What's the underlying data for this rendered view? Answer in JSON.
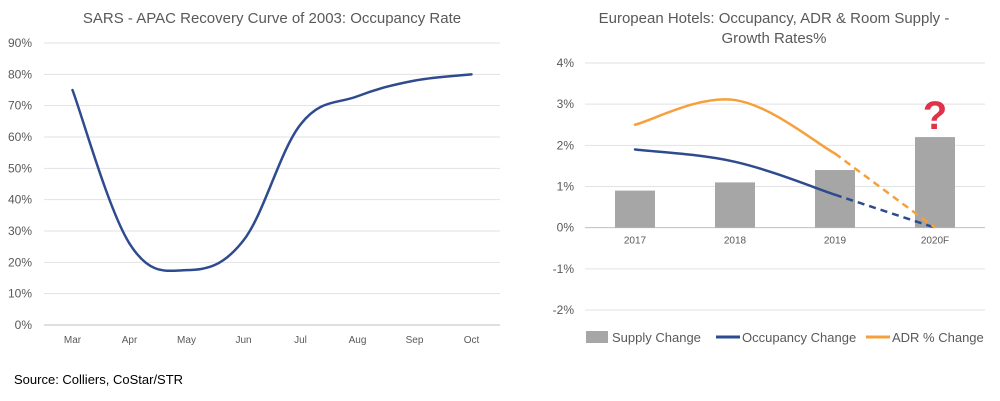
{
  "source_note": "Source: Colliers, CoStar/STR",
  "chart_data": [
    {
      "type": "line",
      "title": "SARS - APAC Recovery Curve of 2003: Occupancy Rate",
      "categories": [
        "Mar",
        "Apr",
        "May",
        "Jun",
        "Jul",
        "Aug",
        "Sep",
        "Oct"
      ],
      "series": [
        {
          "values": [
            75,
            26,
            17.5,
            27,
            64,
            73,
            78,
            80
          ],
          "color": "#2f4b8f"
        }
      ],
      "ylim": [
        0,
        90
      ],
      "yticks": [
        "0%",
        "10%",
        "20%",
        "30%",
        "40%",
        "50%",
        "60%",
        "70%",
        "80%",
        "90%"
      ],
      "grid": true,
      "legend": "none"
    },
    {
      "type": "bar",
      "title_lines": [
        "European Hotels:  Occupancy, ADR & Room Supply -",
        "Growth Rates%"
      ],
      "categories": [
        "2017",
        "2018",
        "2019",
        "2020F"
      ],
      "ylim": [
        -2,
        4
      ],
      "yticks": [
        "-2%",
        "-1%",
        "0%",
        "1%",
        "2%",
        "3%",
        "4%"
      ],
      "grid": true,
      "legend": "bottom",
      "annotation": "?",
      "series": [
        {
          "name": "Supply Change",
          "kind": "bar",
          "values": [
            0.9,
            1.1,
            1.4,
            2.2
          ],
          "color": "#a6a6a6"
        },
        {
          "name": "Occupancy Change",
          "kind": "line",
          "values": [
            1.9,
            1.6,
            0.8,
            0
          ],
          "dashed_from": "2019",
          "color": "#2f4b8f"
        },
        {
          "name": "ADR % Change",
          "kind": "line",
          "values": [
            2.5,
            3.1,
            1.8,
            0
          ],
          "dashed_from": "2019",
          "color": "#f5a03a"
        }
      ],
      "annotation_color": "#e0334a"
    }
  ]
}
